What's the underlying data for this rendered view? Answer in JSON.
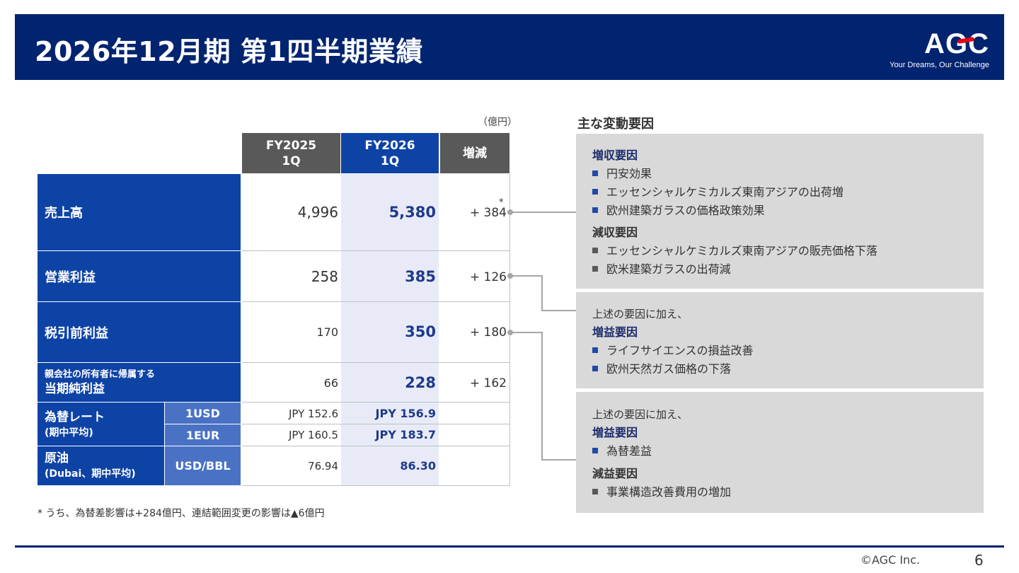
{
  "header": {
    "title": "2026年12月期 第1四半期業績",
    "logo_text": "AGC",
    "logo_tagline": "Your Dreams, Our Challenge"
  },
  "table": {
    "unit": "（億円）",
    "columns": [
      "FY2025\n1Q",
      "FY2026\n1Q",
      "増減"
    ],
    "col_fy2025": "FY2025",
    "col_fy2025_sub": "1Q",
    "col_fy2026": "FY2026",
    "col_fy2026_sub": "1Q",
    "col_diff": "増減",
    "rows": [
      {
        "label": "売上高",
        "fy2025": "4,996",
        "fy2026": "5,380",
        "diff": "+ 384",
        "mark": "*"
      },
      {
        "label": "営業利益",
        "fy2025": "258",
        "fy2026": "385",
        "diff": "+ 126"
      },
      {
        "label": "税引前利益",
        "fy2025": "170",
        "fy2026": "350",
        "diff": "+ 180"
      },
      {
        "label_small": "親会社の所有者に帰属する",
        "label": "当期純利益",
        "fy2025": "66",
        "fy2026": "228",
        "diff": "+ 162"
      }
    ],
    "fx": {
      "label": "為替レート",
      "label_sub": "(期中平均)",
      "rows": [
        {
          "unit": "1USD",
          "fy2025": "JPY  152.6",
          "fy2026": "JPY  156.9"
        },
        {
          "unit": "1EUR",
          "fy2025": "JPY  160.5",
          "fy2026": "JPY  183.7"
        }
      ]
    },
    "oil": {
      "label": "原油",
      "label_sub": "(Dubai、期中平均)",
      "unit": "USD/BBL",
      "fy2025": "76.94",
      "fy2026": "86.30"
    },
    "footnote": "* うち、為替差影響は+284億円、連結範囲変更の影響は▲6億円"
  },
  "factors": {
    "title": "主な変動要因",
    "sales": {
      "inc_head": "増収要因",
      "inc_items": [
        "円安効果",
        "エッセンシャルケミカルズ東南アジアの出荷増",
        "欧州建築ガラスの価格政策効果"
      ],
      "dec_head": "減収要因",
      "dec_items": [
        "エッセンシャルケミカルズ東南アジアの販売価格下落",
        "欧米建築ガラスの出荷減"
      ]
    },
    "op": {
      "intro": "上述の要因に加え、",
      "inc_head": "増益要因",
      "inc_items": [
        "ライフサイエンスの損益改善",
        "欧州天然ガス価格の下落"
      ]
    },
    "pretax": {
      "intro": "上述の要因に加え、",
      "inc_head": "増益要因",
      "inc_items": [
        "為替差益"
      ],
      "dec_head": "減益要因",
      "dec_items": [
        "事業構造改善費用の増加"
      ]
    }
  },
  "footer": {
    "copyright": "©AGC Inc.",
    "page": "6"
  },
  "colors": {
    "navy": "#002470",
    "blue": "#0e43a6",
    "light_blue": "#4a72c4",
    "gray_header": "#595959",
    "box_gray": "#d9d9d9",
    "highlight_col": "#e8ebf7",
    "logo_red": "#e60012"
  }
}
